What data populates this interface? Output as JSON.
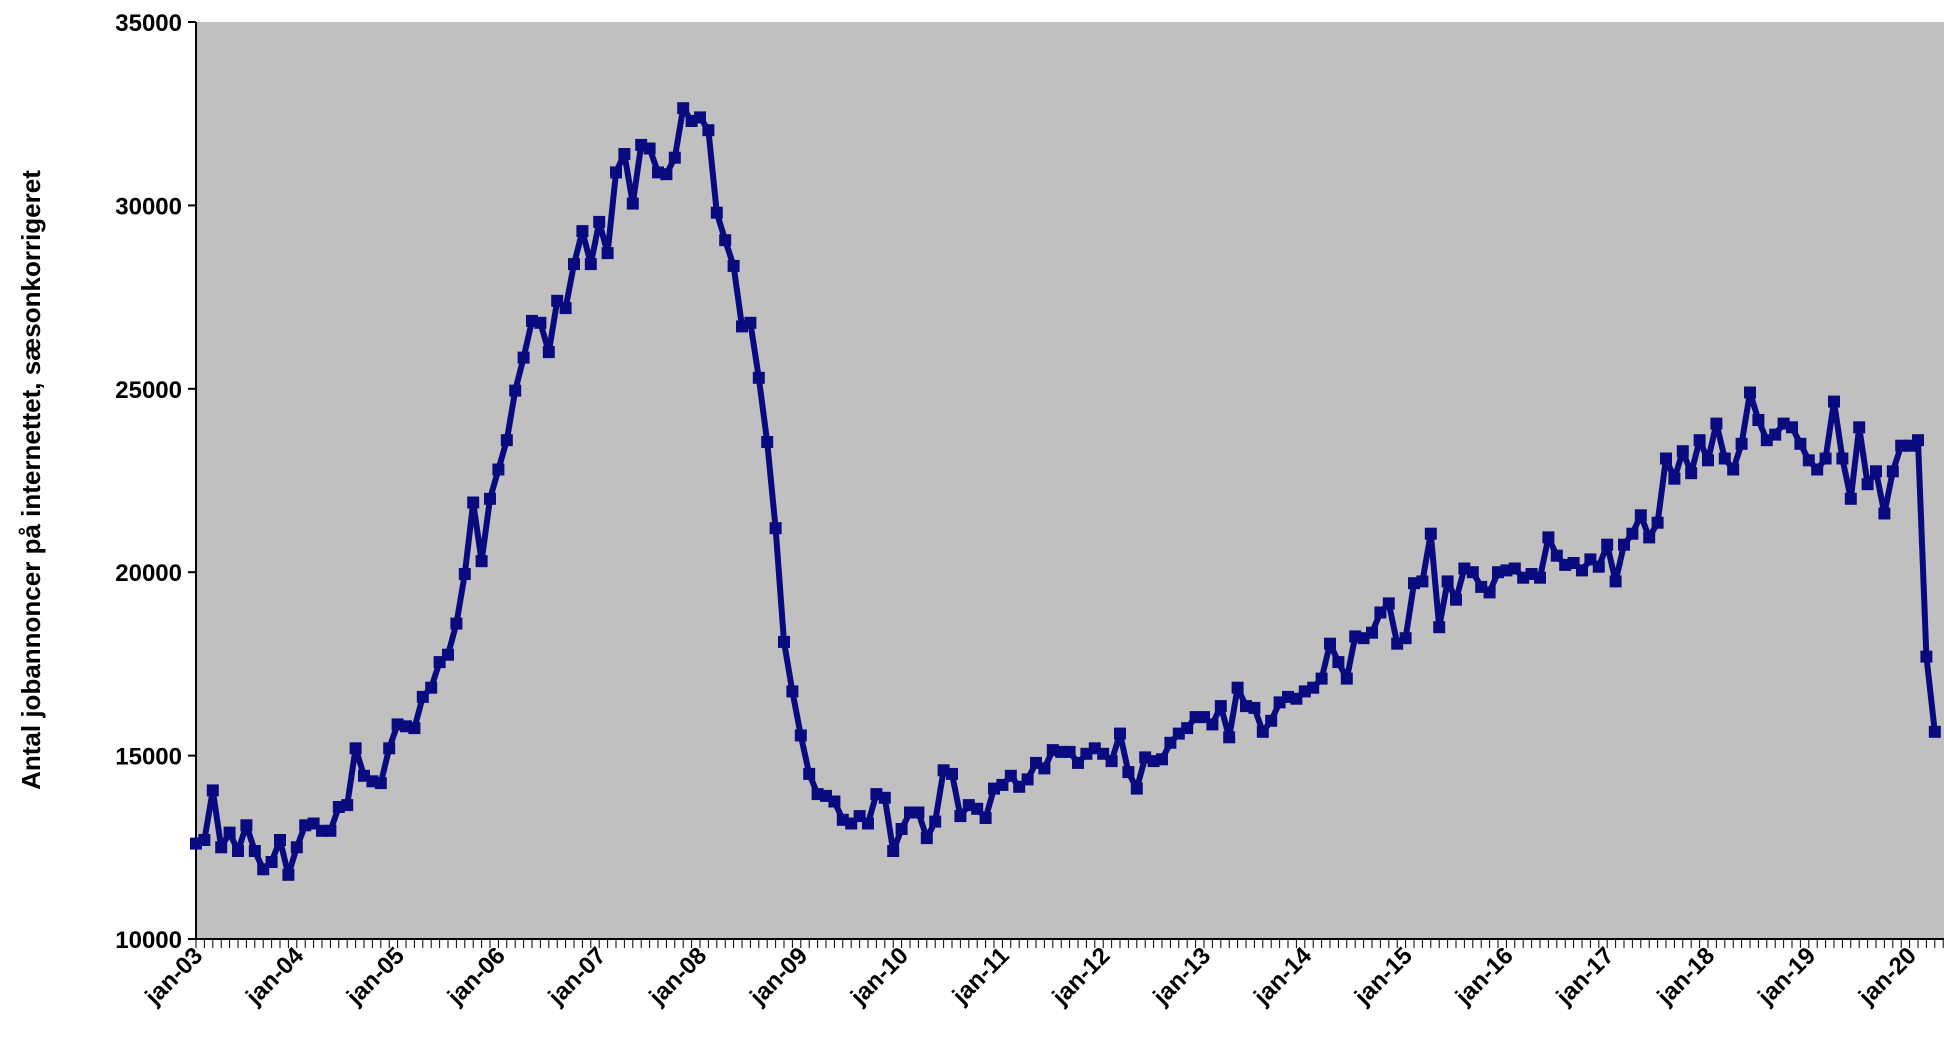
{
  "chart_data": {
    "type": "line",
    "title": "",
    "xlabel": "",
    "ylabel": "Antal jobannoncer på internettet, sæsonkorrigeret",
    "ylim": [
      10000,
      35000
    ],
    "yticks": [
      10000,
      15000,
      20000,
      25000,
      30000,
      35000
    ],
    "xtick_labels": [
      "jan-03",
      "jan-04",
      "jan-05",
      "jan-06",
      "jan-07",
      "jan-08",
      "jan-09",
      "jan-10",
      "jan-11",
      "jan-12",
      "jan-13",
      "jan-14",
      "jan-15",
      "jan-16",
      "jan-17",
      "jan-18",
      "jan-19",
      "jan-20"
    ],
    "x_start": "jan-03",
    "grid": false,
    "legend": "none",
    "colors": {
      "line": "#0a0a80",
      "plot_bg": "#c0c0c0",
      "axis": "#000000"
    },
    "series": [
      {
        "values": [
          12600,
          12700,
          14050,
          12500,
          12900,
          12400,
          13100,
          12400,
          11900,
          12100,
          12700,
          11750,
          12500,
          13100,
          13150,
          12950,
          12950,
          13600,
          13650,
          15200,
          14450,
          14300,
          14250,
          15200,
          15850,
          15800,
          15750,
          16600,
          16850,
          17550,
          17750,
          18600,
          19950,
          21900,
          20300,
          22000,
          22800,
          23600,
          24950,
          25850,
          26850,
          26800,
          26000,
          27400,
          27200,
          28400,
          29300,
          28400,
          29550,
          28700,
          30900,
          31400,
          30050,
          31650,
          31550,
          30900,
          30850,
          31300,
          32650,
          32300,
          32400,
          32050,
          29800,
          29050,
          28350,
          26700,
          26800,
          25300,
          23550,
          21200,
          18100,
          16750,
          15550,
          14500,
          13950,
          13900,
          13750,
          13250,
          13150,
          13350,
          13150,
          13950,
          13850,
          12400,
          13000,
          13450,
          13450,
          12750,
          13200,
          14600,
          14500,
          13350,
          13650,
          13550,
          13300,
          14100,
          14200,
          14450,
          14150,
          14350,
          14800,
          14650,
          15150,
          15100,
          15100,
          14800,
          15050,
          15200,
          15050,
          14850,
          15600,
          14550,
          14100,
          14950,
          14850,
          14900,
          15350,
          15600,
          15750,
          16050,
          16050,
          15850,
          16350,
          15500,
          16850,
          16350,
          16300,
          15650,
          15950,
          16450,
          16600,
          16550,
          16750,
          16850,
          17100,
          18050,
          17550,
          17100,
          18250,
          18200,
          18350,
          18900,
          19150,
          18050,
          18200,
          19700,
          19750,
          21050,
          18500,
          19750,
          19250,
          20100,
          20000,
          19600,
          19450,
          20000,
          20050,
          20100,
          19850,
          19950,
          19850,
          20950,
          20450,
          20200,
          20250,
          20050,
          20350,
          20150,
          20750,
          19750,
          20750,
          21050,
          21550,
          20950,
          21350,
          23100,
          22550,
          23300,
          22700,
          23600,
          23050,
          24050,
          23100,
          22800,
          23500,
          24900,
          24150,
          23600,
          23750,
          24050,
          23950,
          23500,
          23050,
          22800,
          23100,
          24650,
          23100,
          22000,
          23950,
          22400,
          22750,
          21600,
          22750,
          23450,
          23450,
          23600,
          17700,
          15650
        ]
      }
    ]
  }
}
